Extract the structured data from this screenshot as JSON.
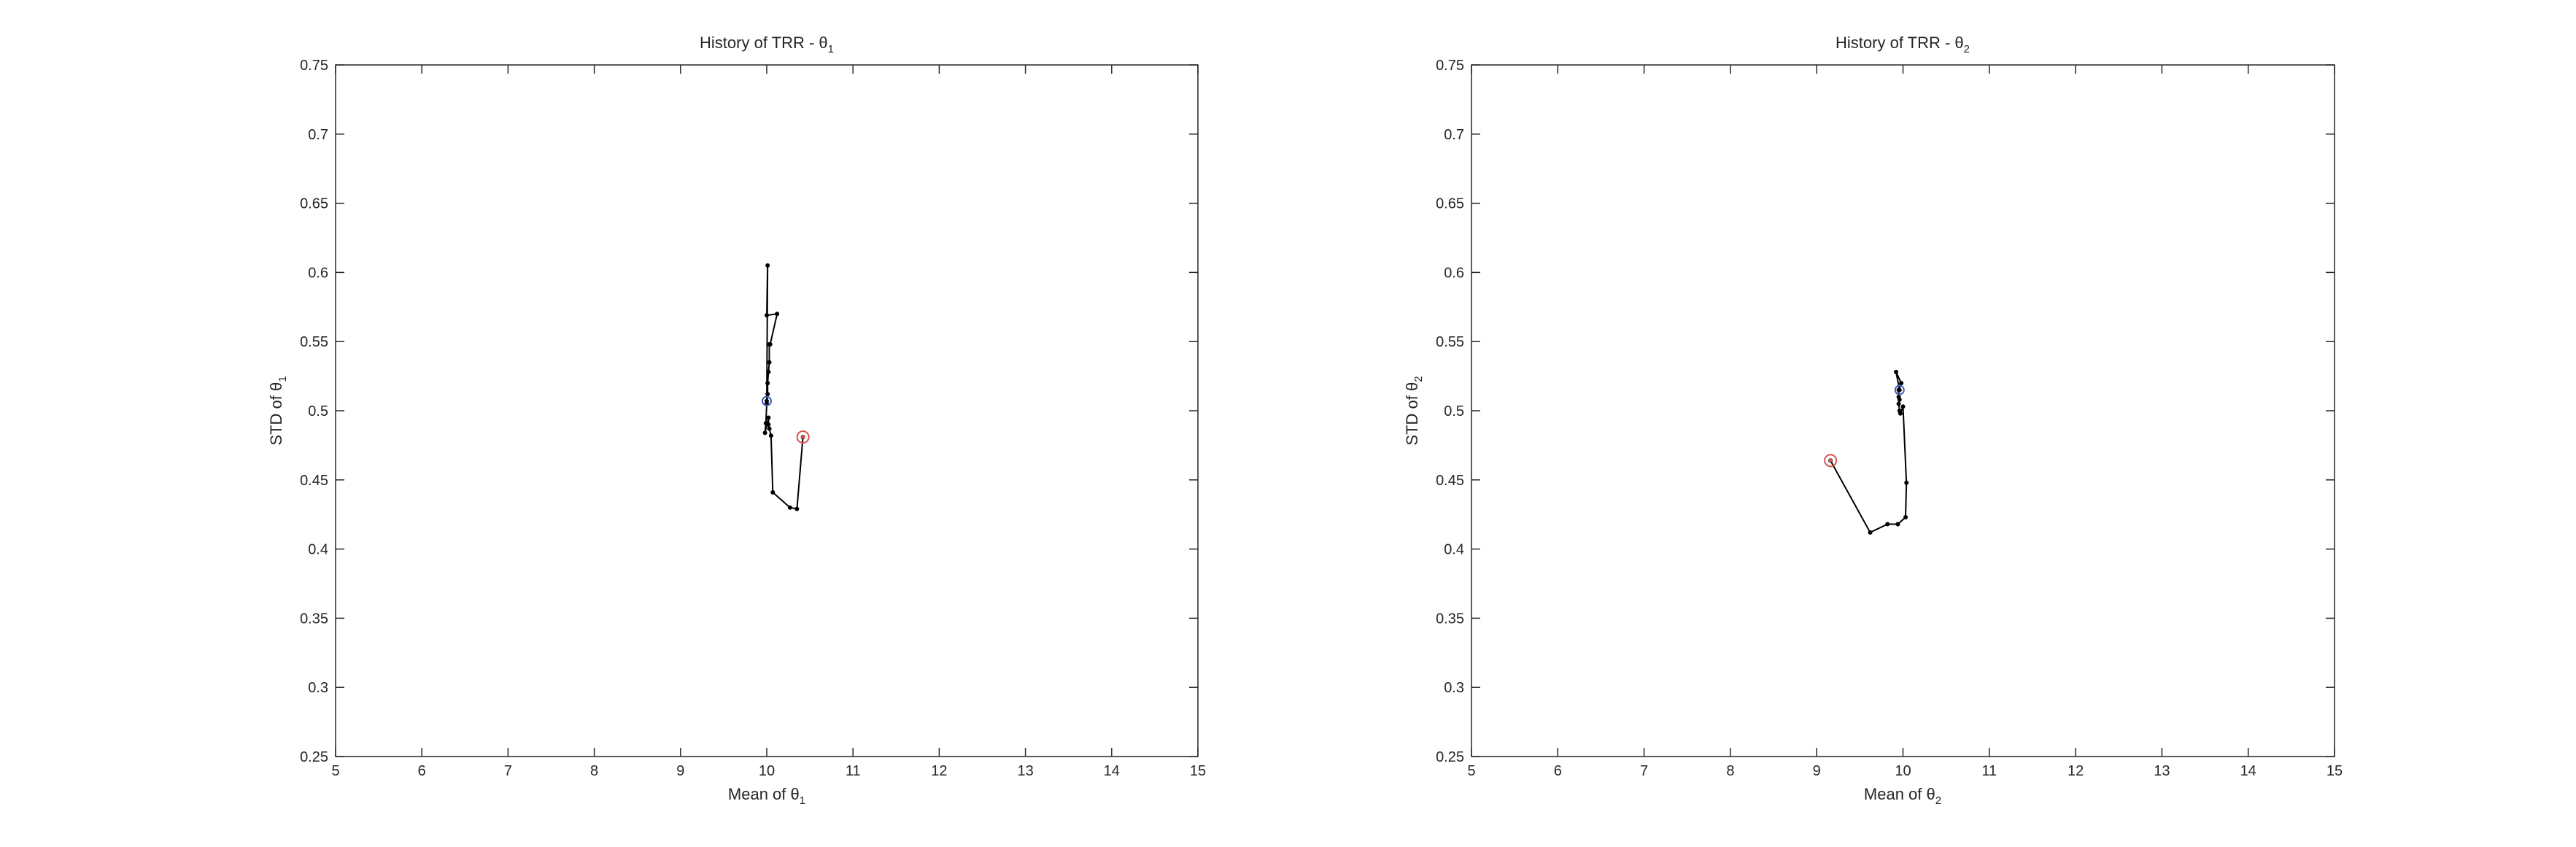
{
  "chart_data": [
    {
      "type": "line",
      "title": "History of TRR - θ",
      "title_subscript": "1",
      "xlabel": "Mean of θ",
      "xlabel_subscript": "1",
      "ylabel": "STD of θ",
      "ylabel_subscript": "1",
      "xlim": [
        5,
        15
      ],
      "ylim": [
        0.25,
        0.75
      ],
      "xticks": [
        "5",
        "6",
        "7",
        "8",
        "9",
        "10",
        "11",
        "12",
        "13",
        "14",
        "15"
      ],
      "yticks": [
        "0.25",
        "0.3",
        "0.35",
        "0.4",
        "0.45",
        "0.5",
        "0.55",
        "0.6",
        "0.65",
        "0.7",
        "0.75"
      ],
      "grid": false,
      "series": [
        {
          "x": [
            10.42,
            10.35,
            10.27,
            10.07,
            10.05,
            10.03,
            10.02,
            10.02,
            9.98,
            9.99,
            10.0,
            10.01,
            10.01,
            10.02,
            10.03,
            10.03,
            10.04,
            10.12,
            10.0,
            10.01,
            10.0
          ],
          "y": [
            0.481,
            0.429,
            0.43,
            0.441,
            0.482,
            0.487,
            0.49,
            0.495,
            0.484,
            0.491,
            0.505,
            0.512,
            0.52,
            0.528,
            0.535,
            0.548,
            0.548,
            0.57,
            0.569,
            0.605,
            0.507
          ],
          "color": "#000000",
          "marker": "dot"
        }
      ],
      "start_marker": {
        "x": 10.42,
        "y": 0.481,
        "color": "#d9534f"
      },
      "end_marker": {
        "x": 10.0,
        "y": 0.507,
        "color": "#3b5fb5"
      }
    },
    {
      "type": "line",
      "title": "History of TRR - θ",
      "title_subscript": "2",
      "xlabel": "Mean of θ",
      "xlabel_subscript": "2",
      "ylabel": "STD of θ",
      "ylabel_subscript": "2",
      "xlim": [
        5,
        15
      ],
      "ylim": [
        0.25,
        0.75
      ],
      "xticks": [
        "5",
        "6",
        "7",
        "8",
        "9",
        "10",
        "11",
        "12",
        "13",
        "14",
        "15"
      ],
      "yticks": [
        "0.25",
        "0.3",
        "0.35",
        "0.4",
        "0.45",
        "0.5",
        "0.55",
        "0.6",
        "0.65",
        "0.7",
        "0.75"
      ],
      "grid": false,
      "series": [
        {
          "x": [
            9.16,
            9.62,
            9.82,
            9.94,
            10.03,
            10.04,
            10.0,
            9.97,
            9.96,
            9.95,
            9.96,
            9.95,
            9.95,
            9.98,
            9.92,
            9.96
          ],
          "y": [
            0.464,
            0.412,
            0.418,
            0.418,
            0.423,
            0.448,
            0.503,
            0.498,
            0.5,
            0.505,
            0.508,
            0.51,
            0.515,
            0.52,
            0.528,
            0.515
          ],
          "color": "#000000",
          "marker": "dot"
        }
      ],
      "start_marker": {
        "x": 9.16,
        "y": 0.464,
        "color": "#d9534f"
      },
      "end_marker": {
        "x": 9.96,
        "y": 0.515,
        "color": "#3b5fb5"
      }
    }
  ]
}
